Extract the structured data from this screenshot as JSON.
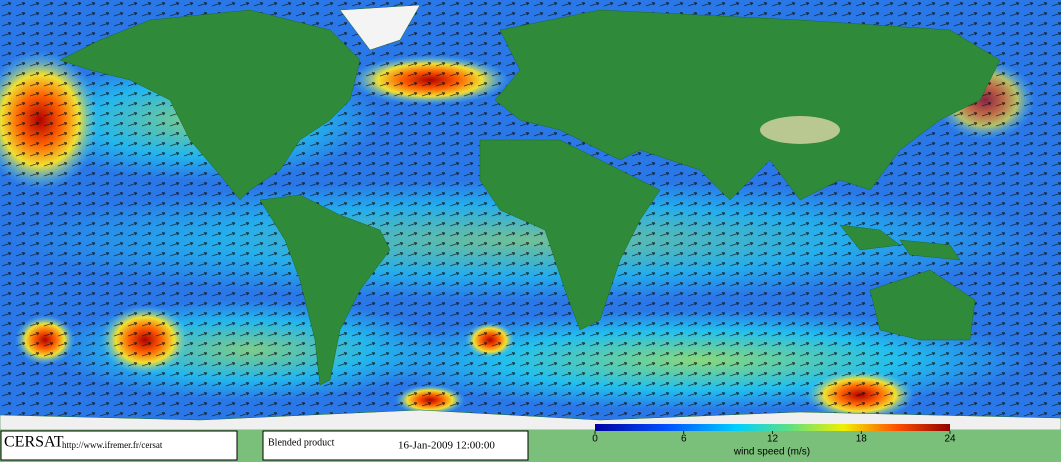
{
  "footer": {
    "logo": "CERSAT",
    "url": "http://www.ifremer.fr/cersat",
    "product": "Blended product",
    "date": "16-Jan-2009 12:00:00"
  },
  "colorbar": {
    "lim": [
      0,
      24
    ],
    "ticks": [
      0,
      6,
      12,
      18,
      24
    ],
    "label": "wind speed (m/s)"
  }
}
